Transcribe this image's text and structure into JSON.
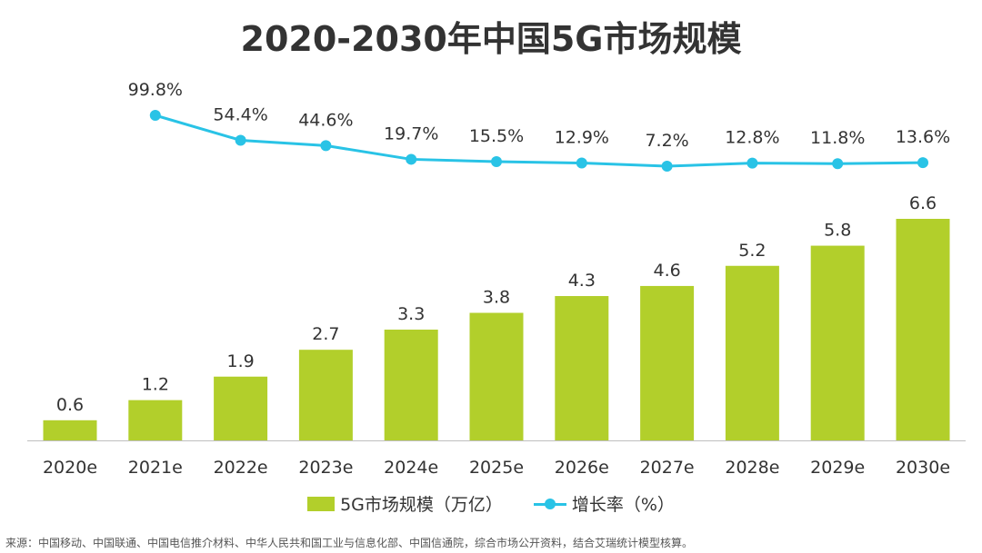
{
  "title": "2020-2030年中国5G市场规模",
  "legend": {
    "bar_label": "5G市场规模（万亿）",
    "line_label": "增长率（%）"
  },
  "source": "来源：中国移动、中国联通、中国电信推介材料、中华人民共和国工业与信息化部、中国信通院，综合市场公开资料，结合艾瑞统计模型核算。",
  "colors": {
    "bar": "#b2cf2b",
    "line": "#29c3e6",
    "text": "#333333"
  },
  "chart_data": {
    "type": "bar",
    "title": "2020-2030年中国5G市场规模",
    "categories": [
      "2020e",
      "2021e",
      "2022e",
      "2023e",
      "2024e",
      "2025e",
      "2026e",
      "2027e",
      "2028e",
      "2029e",
      "2030e"
    ],
    "series": [
      {
        "name": "5G市场规模（万亿）",
        "type": "bar",
        "values": [
          0.6,
          1.2,
          1.9,
          2.7,
          3.3,
          3.8,
          4.3,
          4.6,
          5.2,
          5.8,
          6.6
        ],
        "labels": [
          "0.6",
          "1.2",
          "1.9",
          "2.7",
          "3.3",
          "3.8",
          "4.3",
          "4.6",
          "5.2",
          "5.8",
          "6.6"
        ]
      },
      {
        "name": "增长率（%）",
        "type": "line",
        "values": [
          null,
          99.8,
          54.4,
          44.6,
          19.7,
          15.5,
          12.9,
          7.2,
          12.8,
          11.8,
          13.6
        ],
        "labels": [
          "",
          "99.8%",
          "54.4%",
          "44.6%",
          "19.7%",
          "15.5%",
          "12.9%",
          "7.2%",
          "12.8%",
          "11.8%",
          "13.6%"
        ]
      }
    ],
    "xlabel": "",
    "ylabel": "",
    "ylim": [
      0,
      6.6
    ],
    "grid": false,
    "legend_position": "bottom"
  }
}
